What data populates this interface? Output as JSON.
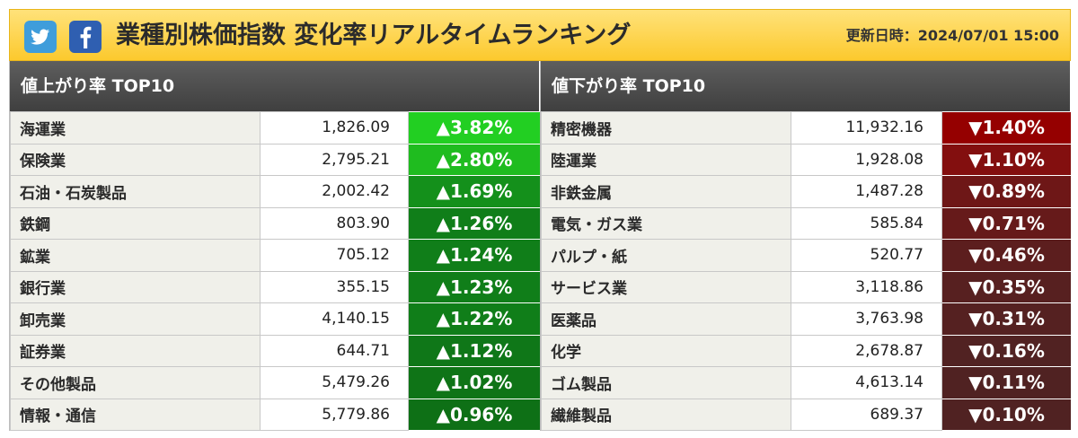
{
  "header": {
    "title": "業種別株価指数 変化率リアルタイムランキング",
    "updated": "更新日時：2024/07/01 15:00",
    "icons": [
      "twitter-icon",
      "facebook-icon"
    ],
    "colors": {
      "twitter": "#3f9ddb",
      "facebook": "#2f5fb1"
    }
  },
  "gainers": {
    "title": "値上がり率 TOP10",
    "rows": [
      {
        "name": "海運業",
        "value": "1,826.09",
        "change": "▲3.82%",
        "color": "#22cf22"
      },
      {
        "name": "保険業",
        "value": "2,795.21",
        "change": "▲2.80%",
        "color": "#1fbc1f"
      },
      {
        "name": "石油・石炭製品",
        "value": "2,002.42",
        "change": "▲1.69%",
        "color": "#14901b"
      },
      {
        "name": "鉄鋼",
        "value": "803.90",
        "change": "▲1.26%",
        "color": "#107e19"
      },
      {
        "name": "鉱業",
        "value": "705.12",
        "change": "▲1.24%",
        "color": "#107e19"
      },
      {
        "name": "銀行業",
        "value": "355.15",
        "change": "▲1.23%",
        "color": "#107e19"
      },
      {
        "name": "卸売業",
        "value": "4,140.15",
        "change": "▲1.22%",
        "color": "#107e19"
      },
      {
        "name": "証券業",
        "value": "644.71",
        "change": "▲1.12%",
        "color": "#0f7718"
      },
      {
        "name": "その他製品",
        "value": "5,479.26",
        "change": "▲1.02%",
        "color": "#0f7417"
      },
      {
        "name": "情報・通信",
        "value": "5,779.86",
        "change": "▲0.96%",
        "color": "#0e7016"
      }
    ]
  },
  "losers": {
    "title": "値下がり率 TOP10",
    "rows": [
      {
        "name": "精密機器",
        "value": "11,932.16",
        "change": "▼1.40%",
        "color": "#950000"
      },
      {
        "name": "陸運業",
        "value": "1,928.08",
        "change": "▼1.10%",
        "color": "#830f0f"
      },
      {
        "name": "非鉄金属",
        "value": "1,487.28",
        "change": "▼0.89%",
        "color": "#6e1717"
      },
      {
        "name": "電気・ガス業",
        "value": "585.84",
        "change": "▼0.71%",
        "color": "#661a1a"
      },
      {
        "name": "パルプ・紙",
        "value": "520.77",
        "change": "▼0.46%",
        "color": "#5c1e1e"
      },
      {
        "name": "サービス業",
        "value": "3,118.86",
        "change": "▼0.35%",
        "color": "#572020"
      },
      {
        "name": "医薬品",
        "value": "3,763.98",
        "change": "▼0.31%",
        "color": "#552121"
      },
      {
        "name": "化学",
        "value": "2,678.87",
        "change": "▼0.16%",
        "color": "#512222"
      },
      {
        "name": "ゴム製品",
        "value": "4,613.14",
        "change": "▼0.11%",
        "color": "#502222"
      },
      {
        "name": "繊維製品",
        "value": "689.37",
        "change": "▼0.10%",
        "color": "#502222"
      }
    ]
  }
}
